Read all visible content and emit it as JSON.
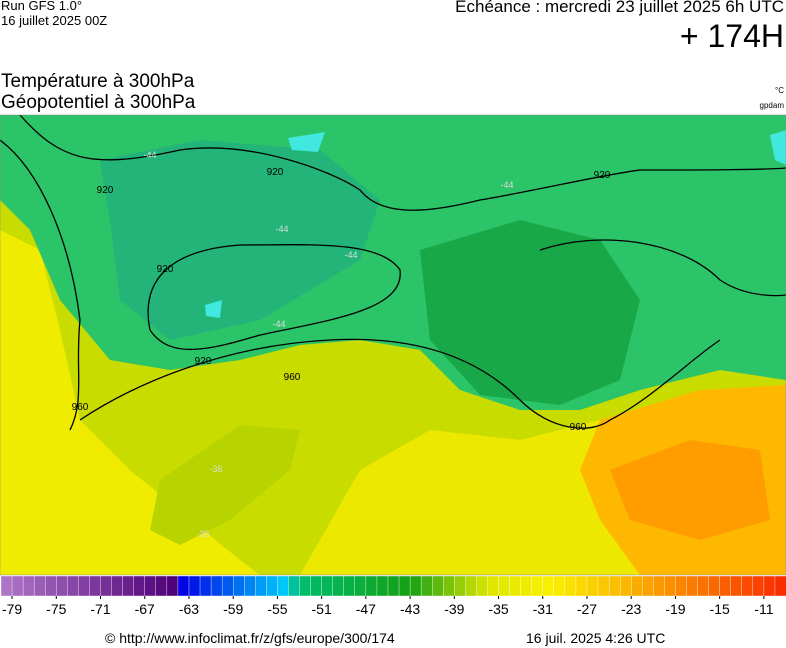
{
  "header": {
    "run": "Run GFS 1.0°",
    "run_date": "16 juillet 2025 00Z",
    "forecast": "Echéance : mercredi 23 juillet 2025 6h UTC",
    "lead": "+ 174H"
  },
  "titles": {
    "temperature": "Température à 300hPa",
    "geopotential": "Géopotentiel à 300hPa",
    "temp_unit": "°C",
    "geo_unit": "gpdam"
  },
  "map": {
    "contour_labels": [
      920,
      920,
      920,
      920,
      920,
      960,
      960,
      960
    ],
    "isotherm_labels": [
      -44,
      -44,
      -44,
      -44,
      -44,
      -36,
      -36
    ]
  },
  "colorbar": {
    "range": [
      -80,
      -9
    ],
    "ticks": [
      -79,
      -75,
      -71,
      -67,
      -63,
      -59,
      -55,
      -51,
      -47,
      -43,
      -39,
      -35,
      -31,
      -27,
      -23,
      -19,
      -15,
      -11
    ]
  },
  "footer": {
    "url": "© http://www.infoclimat.fr/z/gfs/europe/300/174",
    "date": "16 juil. 2025  4:26 UTC"
  }
}
